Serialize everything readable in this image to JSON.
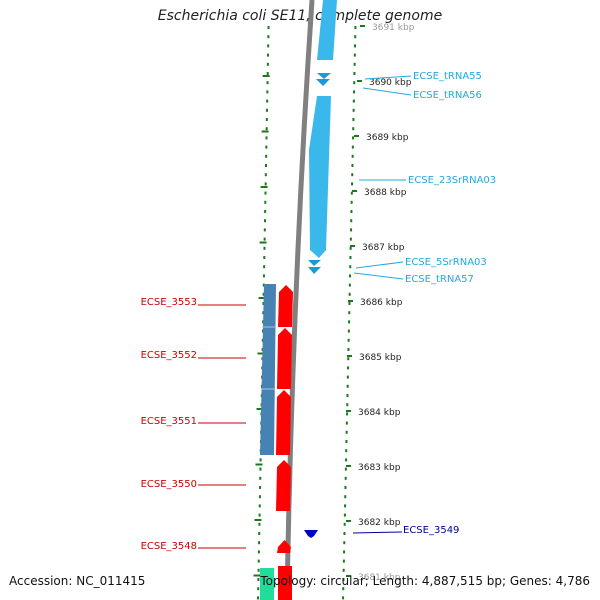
{
  "title": "Escherichia coli SE11, complete genome",
  "footer": {
    "accession": "Accession: NC_011415",
    "summary": "Topology: circular; Length: 4,887,515 bp; Genes: 4,786"
  },
  "colors": {
    "rna": "#3ab8ec",
    "rna_dark": "#1a9ad8",
    "cds_forward": "#ff0000",
    "cds_reverse": "#4682b4",
    "blue_gene": "#0000cc",
    "label_red": "#cc0000",
    "label_cyan": "#22aadd",
    "label_blue": "#000099",
    "ruler_green": "#1a7a1a",
    "backbone": "#808080"
  },
  "ruler_labels": [
    {
      "text": "3691 kbp",
      "partial": true
    },
    {
      "text": "3690 kbp"
    },
    {
      "text": "3689 kbp"
    },
    {
      "text": "3688 kbp"
    },
    {
      "text": "3687 kbp"
    },
    {
      "text": "3686 kbp"
    },
    {
      "text": "3685 kbp"
    },
    {
      "text": "3684 kbp"
    },
    {
      "text": "3683 kbp"
    },
    {
      "text": "3682 kbp"
    },
    {
      "text": "3681 kbp",
      "partial": true
    }
  ],
  "features": {
    "rna": [
      "ECSE_tRNA55",
      "ECSE_tRNA56",
      "ECSE_23SrRNA03",
      "ECSE_5SrRNA03",
      "ECSE_tRNA57"
    ],
    "cds_left": [
      "ECSE_3553",
      "ECSE_3552",
      "ECSE_3551",
      "ECSE_3550",
      "ECSE_3548"
    ],
    "cds_right": [
      "ECSE_3549"
    ]
  }
}
